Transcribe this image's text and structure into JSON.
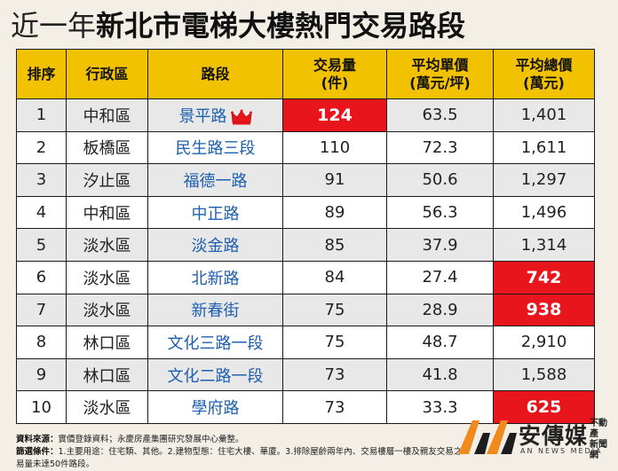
{
  "title": {
    "light": "近一年",
    "bold": "新北市電梯大樓熱門交易路段"
  },
  "table": {
    "headers": {
      "rank": "排序",
      "district": "行政區",
      "road": "路段",
      "volume_1": "交易量",
      "volume_2": "(件)",
      "unit_price_1": "平均單價",
      "unit_price_2": "(萬元/坪)",
      "total_price_1": "平均總價",
      "total_price_2": "(萬元)"
    },
    "rows": [
      {
        "rank": "1",
        "district": "中和區",
        "road": "景平路",
        "volume": "124",
        "unit_price": "63.5",
        "total_price": "1,401"
      },
      {
        "rank": "2",
        "district": "板橋區",
        "road": "民生路三段",
        "volume": "110",
        "unit_price": "72.3",
        "total_price": "1,611"
      },
      {
        "rank": "3",
        "district": "汐止區",
        "road": "福德一路",
        "volume": "91",
        "unit_price": "50.6",
        "total_price": "1,297"
      },
      {
        "rank": "4",
        "district": "中和區",
        "road": "中正路",
        "volume": "89",
        "unit_price": "56.3",
        "total_price": "1,496"
      },
      {
        "rank": "5",
        "district": "淡水區",
        "road": "淡金路",
        "volume": "85",
        "unit_price": "37.9",
        "total_price": "1,314"
      },
      {
        "rank": "6",
        "district": "淡水區",
        "road": "北新路",
        "volume": "84",
        "unit_price": "27.4",
        "total_price": "742"
      },
      {
        "rank": "7",
        "district": "淡水區",
        "road": "新春街",
        "volume": "75",
        "unit_price": "28.9",
        "total_price": "938"
      },
      {
        "rank": "8",
        "district": "林口區",
        "road": "文化三路一段",
        "volume": "75",
        "unit_price": "48.7",
        "total_price": "2,910"
      },
      {
        "rank": "9",
        "district": "林口區",
        "road": "文化二路一段",
        "volume": "73",
        "unit_price": "41.8",
        "total_price": "1,588"
      },
      {
        "rank": "10",
        "district": "淡水區",
        "road": "學府路",
        "volume": "73",
        "unit_price": "33.3",
        "total_price": "625"
      }
    ]
  },
  "footer": {
    "source_label": "資料來源：",
    "source_text": "實價登錄資料；永慶房產集團研究發展中心彙整。",
    "criteria_label": "篩選條件：",
    "criteria_text": "1.主要用途：住宅類、其他。2.建物型態：住宅大樓、華廈。3.排除屋齡兩年內、交易樓層一樓及親友交易之成交資料。4.排除近一年交",
    "criteria_text_2": "易量未達50件路段。"
  },
  "logo": {
    "name": "安傳媒",
    "side_1": "不動產",
    "side_2": "新聞網",
    "english": "AN NEWS MEDIA"
  },
  "colors": {
    "background": "#f3efe6",
    "header_yellow": "#f2c100",
    "highlight_red": "#e8151d",
    "road_blue": "#1d5fb0",
    "logo_orange": "#f08a1c"
  }
}
